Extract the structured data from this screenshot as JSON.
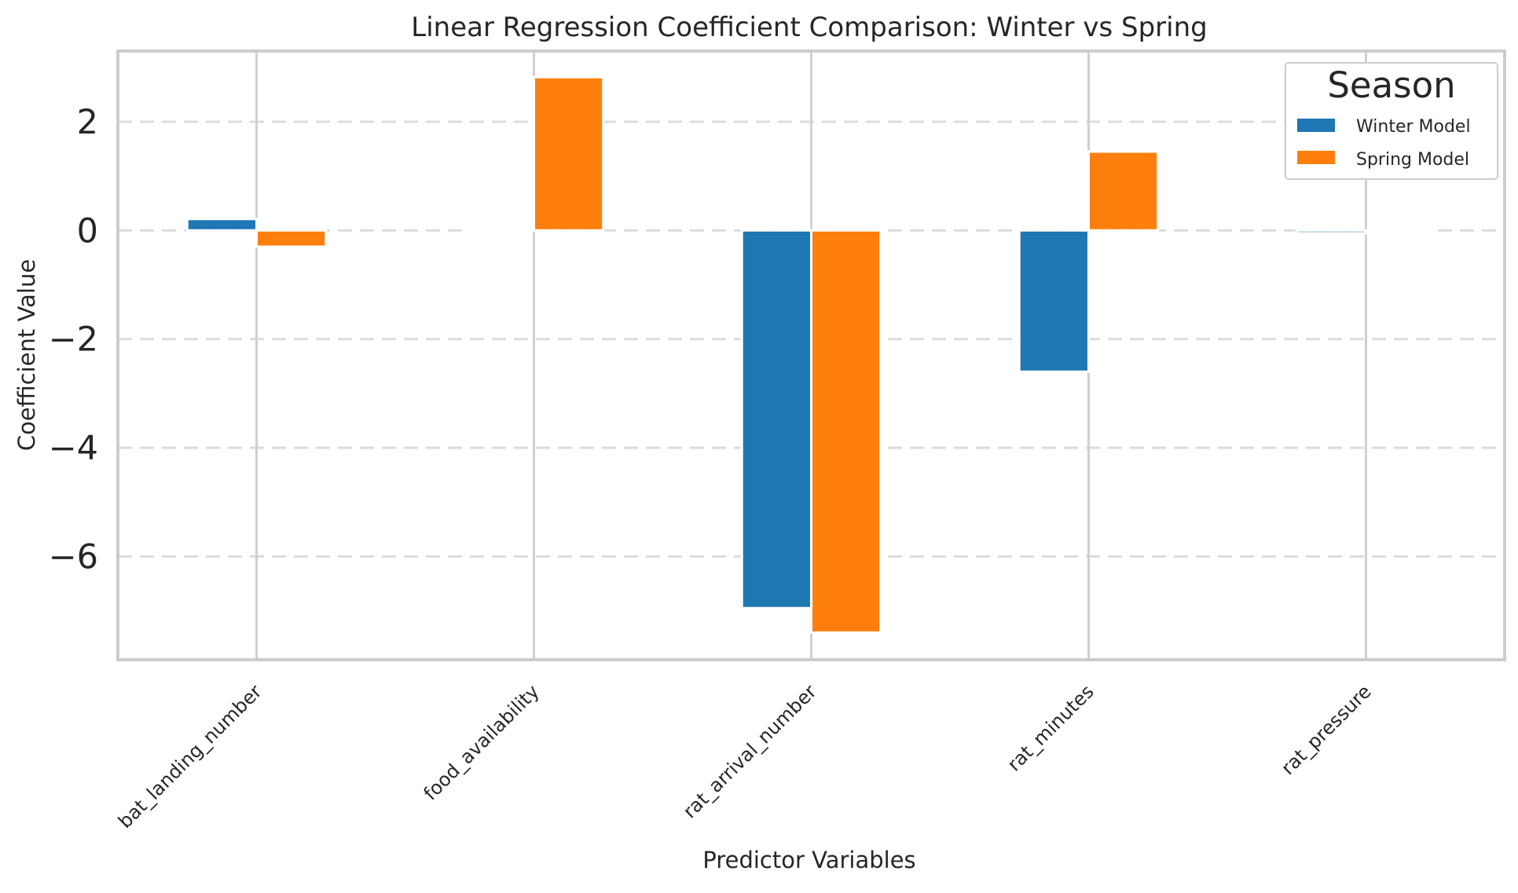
{
  "chart_data": {
    "type": "bar",
    "title": "Linear Regression Coefficient Comparison: Winter vs Spring",
    "xlabel": "Predictor Variables",
    "ylabel": "Coefficient Value",
    "categories": [
      "bat_landing_number",
      "food_availability",
      "rat_arrival_number",
      "rat_minutes",
      "rat_pressure"
    ],
    "series": [
      {
        "name": "Winter Model",
        "color": "#1f77b4",
        "values": [
          0.21,
          0.0,
          -6.95,
          -2.6,
          -0.05
        ]
      },
      {
        "name": "Spring Model",
        "color": "#ff7f0e",
        "values": [
          -0.3,
          2.82,
          -7.4,
          1.45,
          0.0
        ]
      }
    ],
    "ylim": [
      -7.9,
      3.3
    ],
    "yticks": [
      2,
      0,
      -2,
      -4,
      -6
    ],
    "ytick_labels": [
      "2",
      "0",
      "−2",
      "−4",
      "−6"
    ],
    "grid": {
      "y": "dashed",
      "x": "solid"
    },
    "legend": {
      "title": "Season",
      "position": "top-right"
    }
  }
}
